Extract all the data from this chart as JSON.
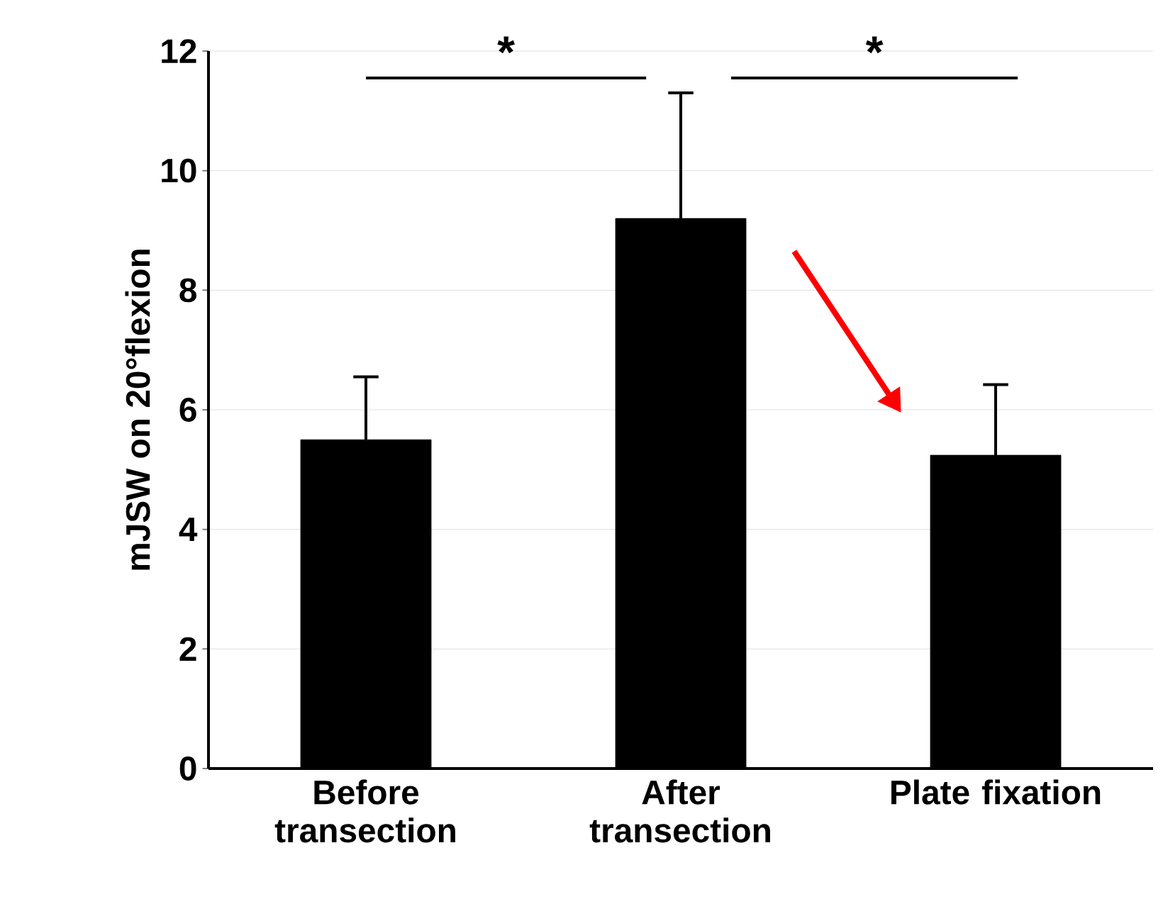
{
  "chart_data": {
    "type": "bar",
    "ylabel": "mJSW on 20°flexion",
    "categories": [
      "Before transection",
      "After transection",
      "Plate fixation"
    ],
    "values": [
      5.5,
      9.2,
      5.24
    ],
    "errors": [
      [
        5.5,
        6.55
      ],
      [
        9.2,
        11.3
      ],
      [
        5.24,
        6.42
      ]
    ],
    "color": "#000000",
    "ylim": [
      0,
      12
    ],
    "yticks": [
      0,
      2,
      4,
      6,
      8,
      10,
      12
    ],
    "grid": "y",
    "annotations": [
      "*",
      "*"
    ]
  }
}
